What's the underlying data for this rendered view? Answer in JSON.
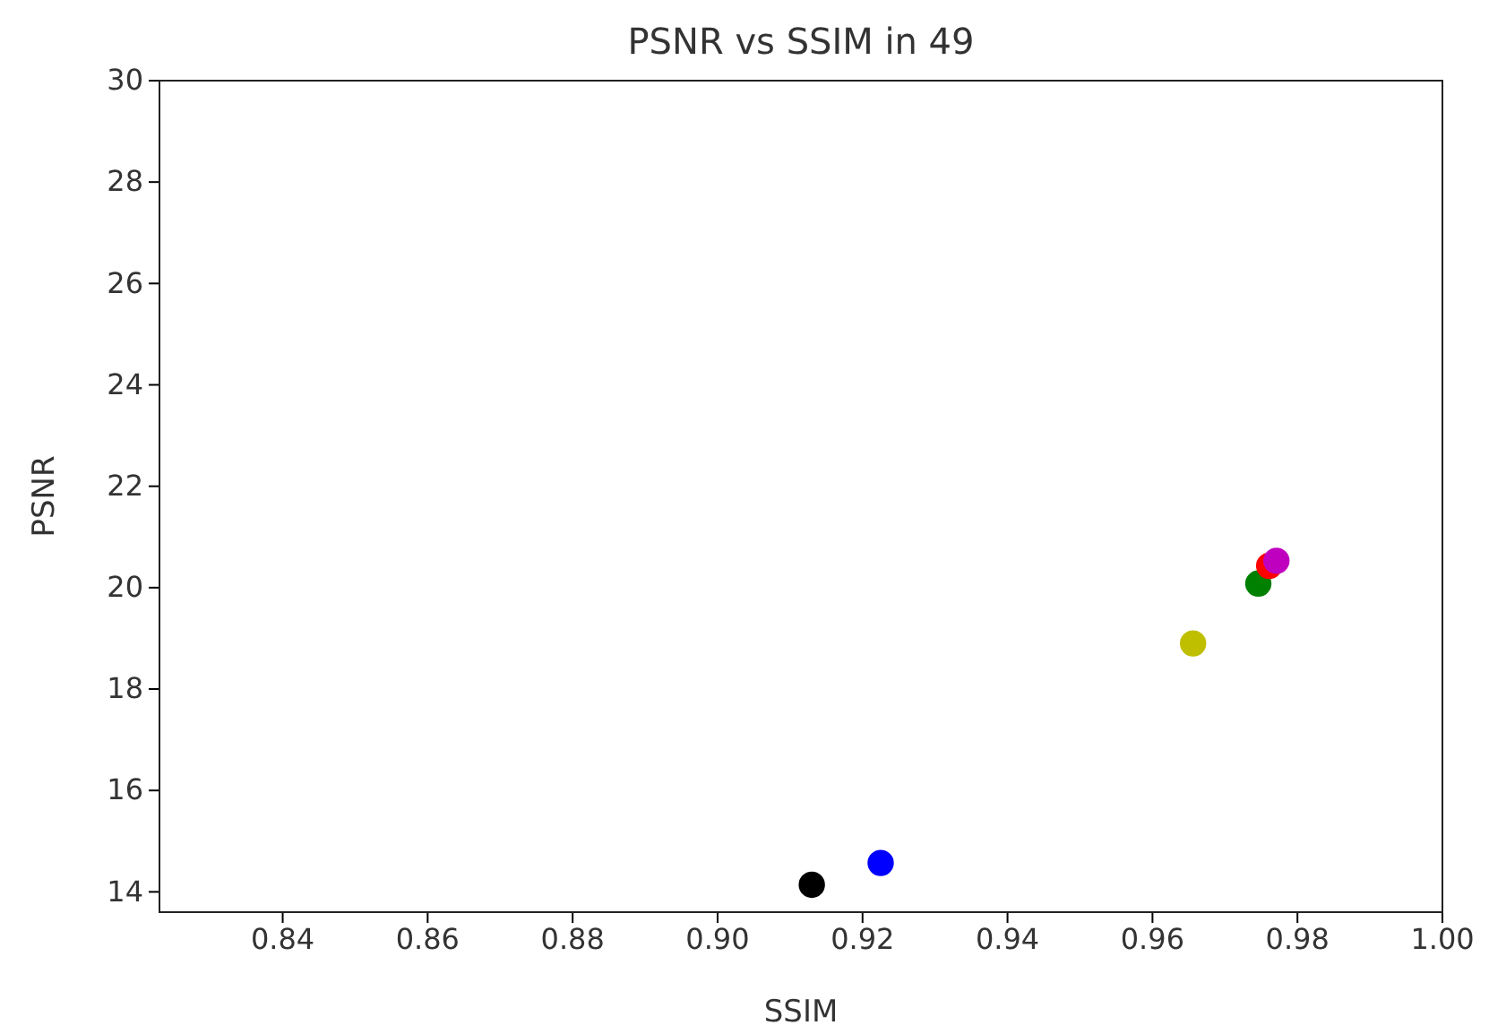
{
  "chart_data": {
    "type": "scatter",
    "title": "PSNR vs SSIM in 49",
    "xlabel": "SSIM",
    "ylabel": "PSNR",
    "x": [
      0.913,
      0.9225,
      0.9656,
      0.9746,
      0.9761,
      0.9771
    ],
    "values": [
      14.14,
      14.57,
      18.9,
      20.08,
      20.43,
      20.53
    ],
    "colors": [
      "#000000",
      "#0000ff",
      "#bfbf00",
      "#008000",
      "#ff0000",
      "#bf00bf"
    ],
    "marker": "circle",
    "xlim": [
      0.823,
      1.0
    ],
    "xticks": [
      0.84,
      0.86,
      0.88,
      {
        "value": 0.9,
        "label": "0.90"
      },
      0.92,
      0.94,
      0.96,
      0.98,
      {
        "value": 1.0,
        "label": "1.00"
      }
    ],
    "ylim": [
      13.6,
      30
    ],
    "yticks": [
      14,
      16,
      18,
      20,
      22,
      24,
      26,
      28,
      30
    ]
  }
}
